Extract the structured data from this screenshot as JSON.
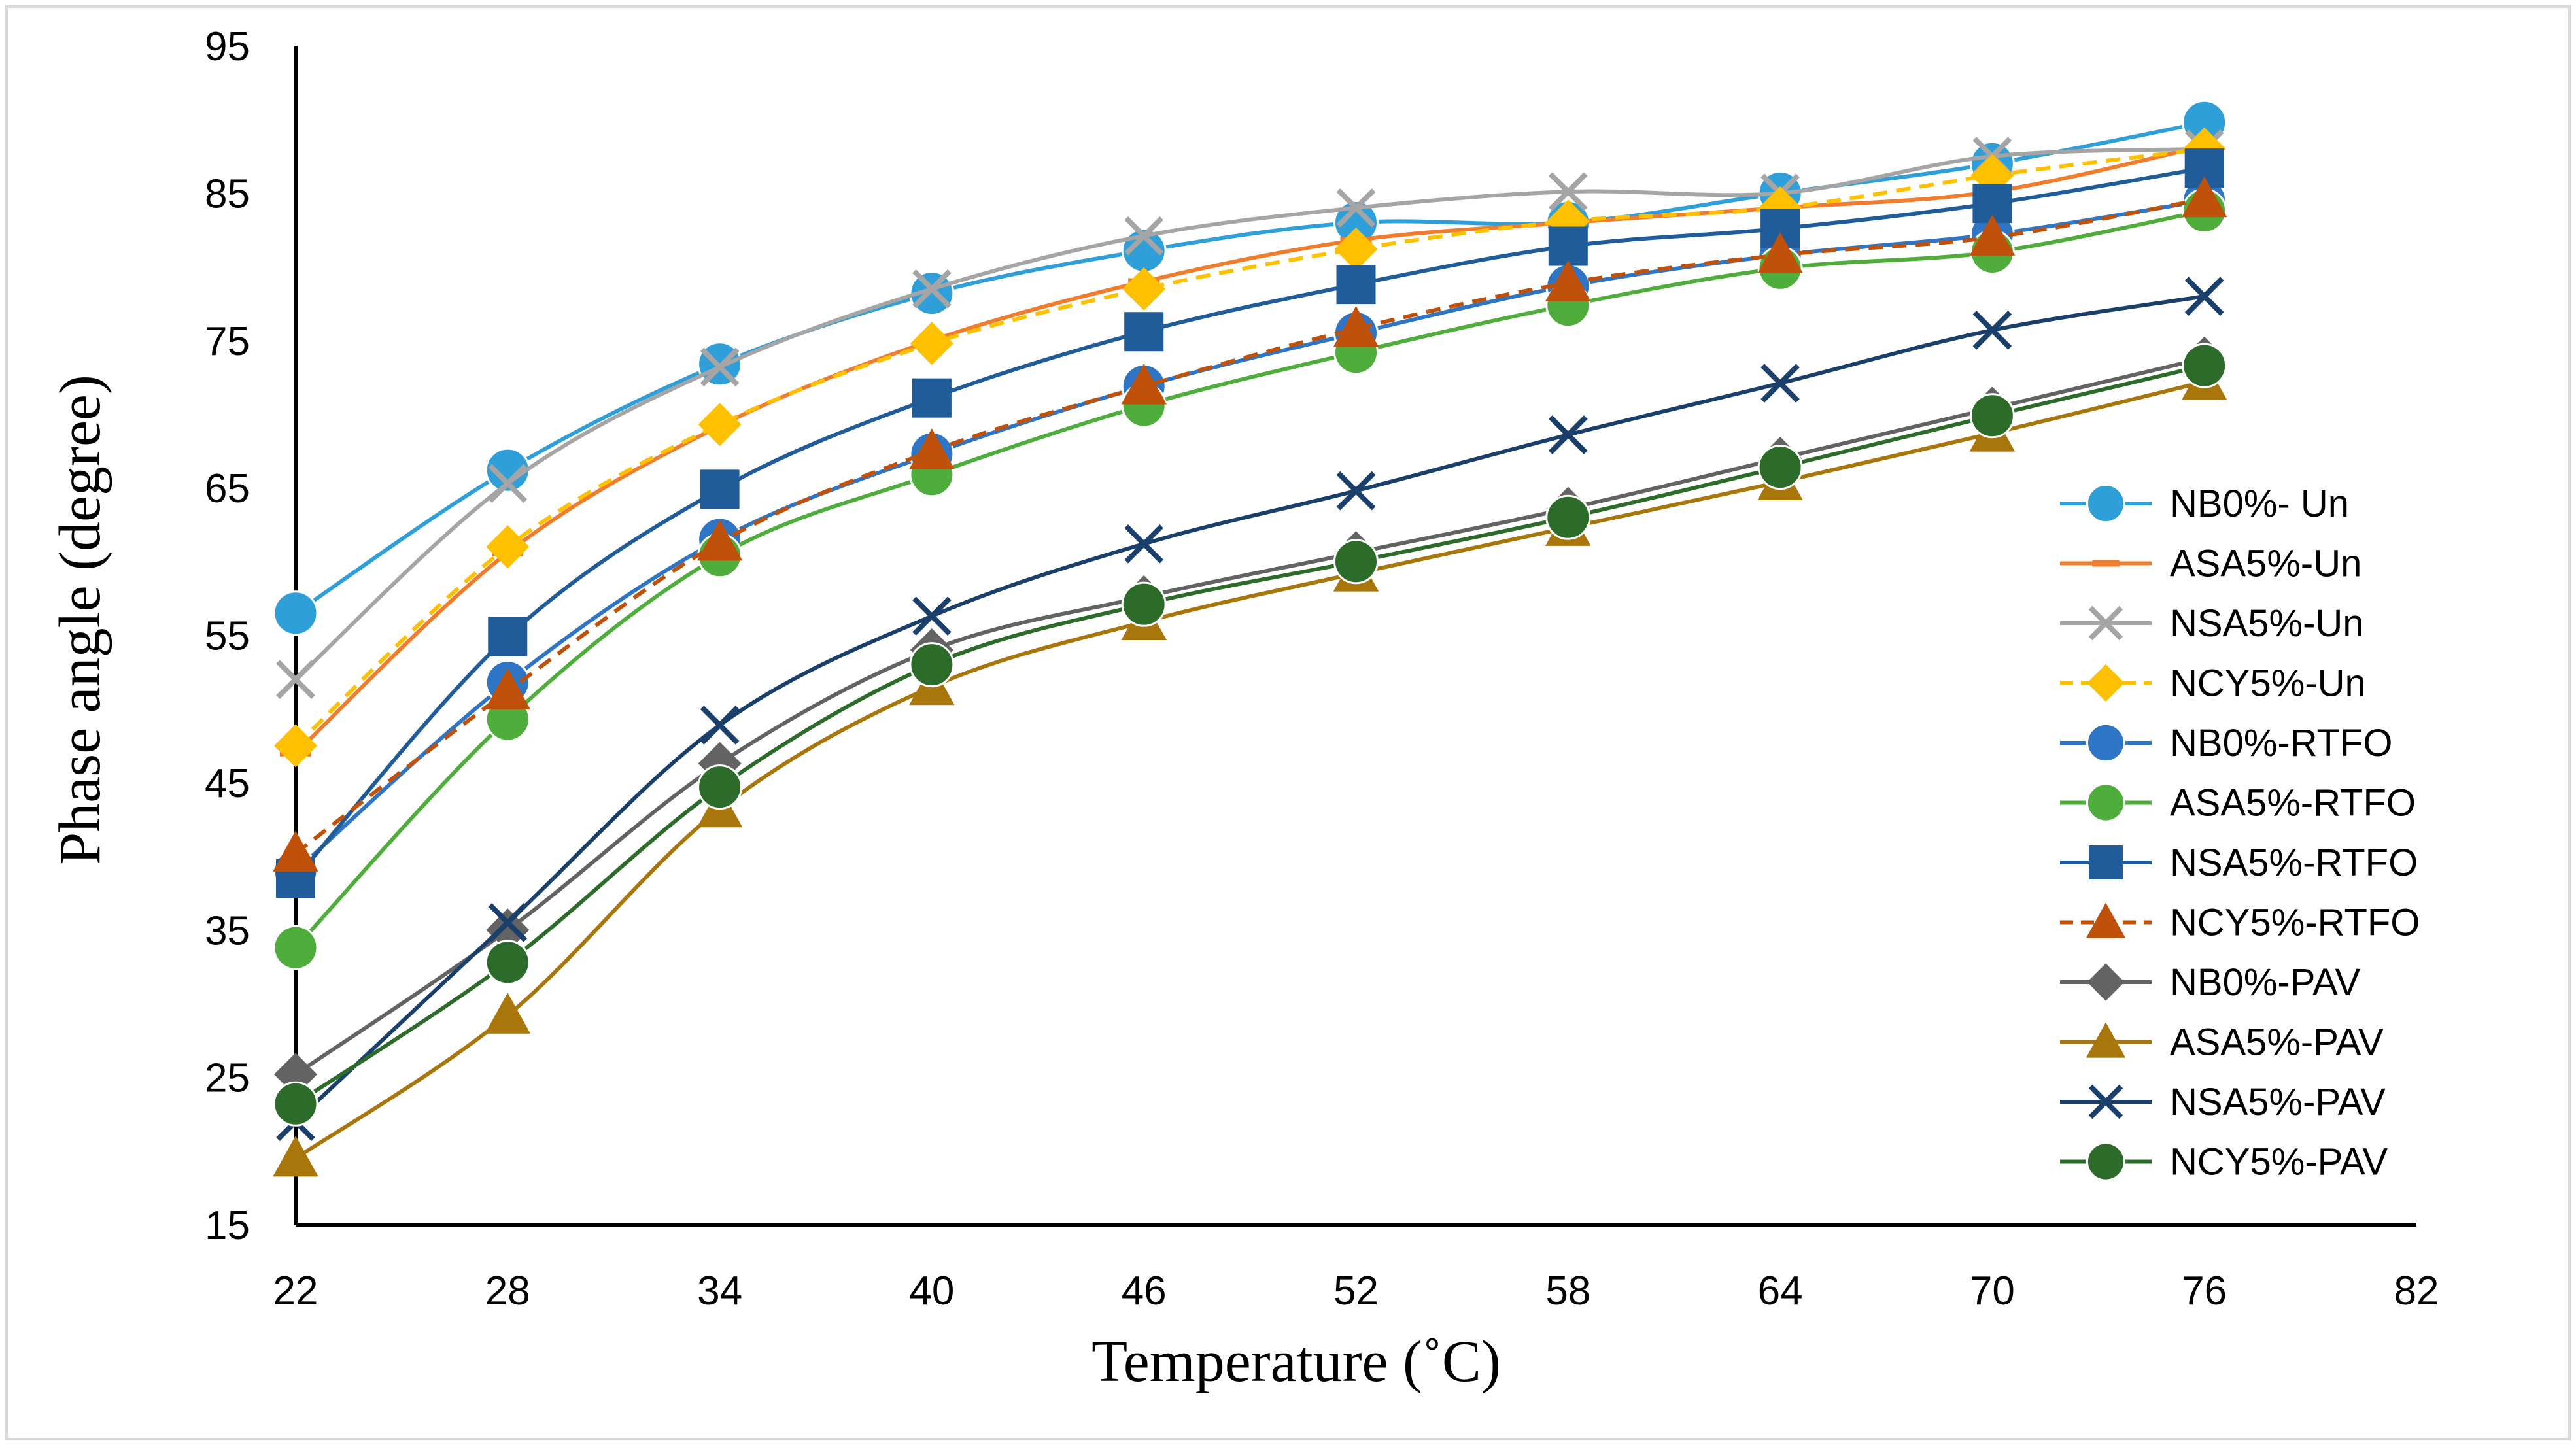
{
  "chart_data": {
    "type": "line",
    "title": "",
    "xlabel": "Temperature (˚C)",
    "ylabel": "Phase angle (degree)",
    "xlim": [
      22,
      82
    ],
    "ylim": [
      15,
      95
    ],
    "xticks": [
      "22",
      "28",
      "34",
      "40",
      "46",
      "52",
      "58",
      "64",
      "70",
      "76",
      "82"
    ],
    "yticks": [
      "15",
      "25",
      "35",
      "45",
      "55",
      "65",
      "75",
      "85",
      "95"
    ],
    "x": [
      22,
      28,
      34,
      40,
      46,
      52,
      58,
      64,
      70,
      76
    ],
    "legend_position": "right",
    "series": [
      {
        "name": "NB0%- Un",
        "color": "#2E9FD8",
        "marker": "circle",
        "dash": false,
        "values": [
          56.5,
          66.2,
          73.4,
          78.2,
          81.1,
          83.0,
          83.0,
          85.0,
          87.0,
          89.8
        ]
      },
      {
        "name": "ASA5%-Un",
        "color": "#F07C2E",
        "marker": "dash",
        "dash": false,
        "values": [
          47.0,
          60.6,
          69.2,
          75.0,
          79.0,
          81.8,
          83.0,
          84.0,
          85.1,
          88.2
        ]
      },
      {
        "name": "NSA5%-Un",
        "color": "#A5A5A5",
        "marker": "x",
        "dash": false,
        "values": [
          52.0,
          65.3,
          73.2,
          78.5,
          82.1,
          84.0,
          85.1,
          85.0,
          87.5,
          88.0
        ]
      },
      {
        "name": "NCY5%-Un",
        "color": "#FFC000",
        "marker": "diamond",
        "dash": true,
        "values": [
          47.5,
          61.0,
          69.3,
          74.8,
          78.5,
          81.2,
          83.1,
          84.0,
          86.2,
          88.0
        ]
      },
      {
        "name": "NB0%-RTFO",
        "color": "#2E75C6",
        "marker": "circle",
        "dash": false,
        "values": [
          39.0,
          51.8,
          61.5,
          67.3,
          71.9,
          75.5,
          78.7,
          80.8,
          82.2,
          84.5
        ]
      },
      {
        "name": "ASA5%-RTFO",
        "color": "#4EAD3B",
        "marker": "circle",
        "dash": false,
        "values": [
          33.8,
          49.3,
          60.4,
          65.9,
          70.6,
          74.2,
          77.4,
          79.9,
          81.0,
          83.8
        ]
      },
      {
        "name": "NSA5%-RTFO",
        "color": "#1F5C99",
        "marker": "square",
        "dash": false,
        "values": [
          38.5,
          54.9,
          64.9,
          71.1,
          75.6,
          78.8,
          81.4,
          82.6,
          84.3,
          86.7
        ]
      },
      {
        "name": "NCY5%-RTFO",
        "color": "#C0510A",
        "marker": "triangle",
        "dash": true,
        "values": [
          40.2,
          51.2,
          61.3,
          67.5,
          71.9,
          75.8,
          78.9,
          80.8,
          82.0,
          84.6
        ]
      },
      {
        "name": "NB0%-PAV",
        "color": "#636363",
        "marker": "diamond",
        "dash": false,
        "values": [
          25.2,
          35.0,
          46.3,
          54.0,
          57.6,
          60.6,
          63.6,
          67.0,
          70.4,
          73.8
        ]
      },
      {
        "name": "ASA5%-PAV",
        "color": "#A8760A",
        "marker": "triangle",
        "dash": false,
        "values": [
          19.5,
          29.2,
          43.2,
          51.5,
          55.9,
          59.2,
          62.3,
          65.4,
          68.7,
          72.2
        ]
      },
      {
        "name": "NSA5%-PAV",
        "color": "#1A3F6B",
        "marker": "x",
        "dash": false,
        "values": [
          22.0,
          35.5,
          48.9,
          56.3,
          61.2,
          64.8,
          68.6,
          72.1,
          75.7,
          78.0
        ]
      },
      {
        "name": "NCY5%-PAV",
        "color": "#2C6B2A",
        "marker": "circle",
        "dash": false,
        "values": [
          23.2,
          32.8,
          44.7,
          53.0,
          57.1,
          60.0,
          63.0,
          66.4,
          69.9,
          73.3
        ]
      }
    ]
  }
}
